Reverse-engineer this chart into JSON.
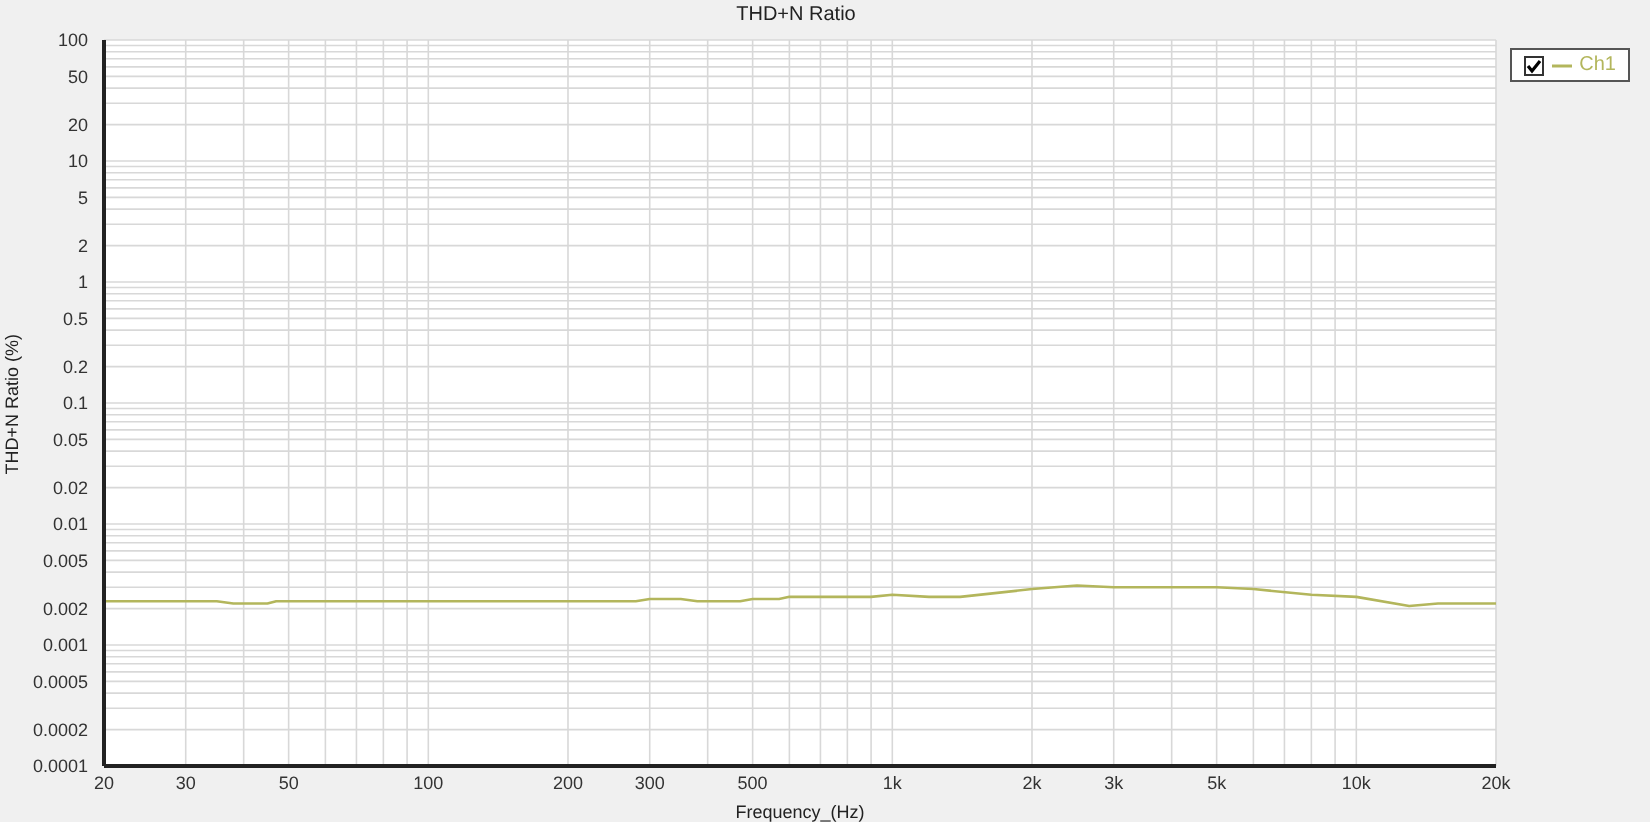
{
  "chart_data": {
    "type": "line",
    "title": "THD+N Ratio",
    "xlabel": "Frequency_(Hz)",
    "ylabel": "THD+N Ratio (%)",
    "log": "xy",
    "grid": true,
    "legend": "top right",
    "line_style": "solid",
    "xlim": [
      20,
      20000
    ],
    "ylim": [
      0.0001,
      100
    ],
    "xticks": [
      20,
      30,
      {
        "value": 40,
        "label": null
      },
      50,
      {
        "value": 60,
        "label": null
      },
      {
        "value": 70,
        "label": null
      },
      {
        "value": 80,
        "label": null
      },
      {
        "value": 90,
        "label": null
      },
      100,
      200,
      300,
      {
        "value": 400,
        "label": null
      },
      500,
      {
        "value": 600,
        "label": null
      },
      {
        "value": 700,
        "label": null
      },
      {
        "value": 800,
        "label": null
      },
      {
        "value": 900,
        "label": null
      },
      {
        "value": 1000,
        "label": "1k"
      },
      {
        "value": 2000,
        "label": "2k"
      },
      {
        "value": 3000,
        "label": "3k"
      },
      {
        "value": 4000,
        "label": null
      },
      {
        "value": 5000,
        "label": "5k"
      },
      {
        "value": 6000,
        "label": null
      },
      {
        "value": 7000,
        "label": null
      },
      {
        "value": 8000,
        "label": null
      },
      {
        "value": 9000,
        "label": null
      },
      {
        "value": 10000,
        "label": "10k"
      },
      {
        "value": 20000,
        "label": "20k"
      }
    ],
    "yticks": [
      0.0001,
      0.0002,
      {
        "value": 0.0003,
        "label": null
      },
      {
        "value": 0.0004,
        "label": null
      },
      0.0005,
      {
        "value": 0.0006,
        "label": null
      },
      {
        "value": 0.0007,
        "label": null
      },
      {
        "value": 0.0008,
        "label": null
      },
      {
        "value": 0.0009,
        "label": null
      },
      0.001,
      0.002,
      {
        "value": 0.003,
        "label": null
      },
      {
        "value": 0.004,
        "label": null
      },
      0.005,
      {
        "value": 0.006,
        "label": null
      },
      {
        "value": 0.007,
        "label": null
      },
      {
        "value": 0.008,
        "label": null
      },
      {
        "value": 0.009,
        "label": null
      },
      0.01,
      0.02,
      {
        "value": 0.03,
        "label": null
      },
      {
        "value": 0.04,
        "label": null
      },
      0.05,
      {
        "value": 0.06,
        "label": null
      },
      {
        "value": 0.07,
        "label": null
      },
      {
        "value": 0.08,
        "label": null
      },
      {
        "value": 0.09,
        "label": null
      },
      0.1,
      0.2,
      {
        "value": 0.3,
        "label": null
      },
      {
        "value": 0.4,
        "label": null
      },
      0.5,
      {
        "value": 0.6,
        "label": null
      },
      {
        "value": 0.7,
        "label": null
      },
      {
        "value": 0.8,
        "label": null
      },
      {
        "value": 0.9,
        "label": null
      },
      1,
      2,
      {
        "value": 3,
        "label": null
      },
      {
        "value": 4,
        "label": null
      },
      5,
      {
        "value": 6,
        "label": null
      },
      {
        "value": 7,
        "label": null
      },
      {
        "value": 8,
        "label": null
      },
      {
        "value": 9,
        "label": null
      },
      10,
      20,
      {
        "value": 30,
        "label": null
      },
      {
        "value": 40,
        "label": null
      },
      50,
      {
        "value": 60,
        "label": null
      },
      {
        "value": 70,
        "label": null
      },
      {
        "value": 80,
        "label": null
      },
      {
        "value": 90,
        "label": null
      },
      100
    ],
    "x": [
      20,
      35,
      38,
      45,
      47,
      280,
      300,
      350,
      380,
      470,
      500,
      570,
      600,
      900,
      1000,
      1200,
      1400,
      2000,
      2500,
      3000,
      5000,
      6000,
      8000,
      10000,
      13000,
      15000,
      20000
    ],
    "series": [
      {
        "name": "Ch1",
        "color": "#b3b65c",
        "values": [
          0.0023,
          0.0023,
          0.0022,
          0.0022,
          0.0023,
          0.0023,
          0.0024,
          0.0024,
          0.0023,
          0.0023,
          0.0024,
          0.0024,
          0.0025,
          0.0025,
          0.0026,
          0.0025,
          0.0025,
          0.0029,
          0.0031,
          0.003,
          0.003,
          0.0029,
          0.0026,
          0.0025,
          0.0021,
          0.0022,
          0.0022
        ]
      }
    ]
  }
}
